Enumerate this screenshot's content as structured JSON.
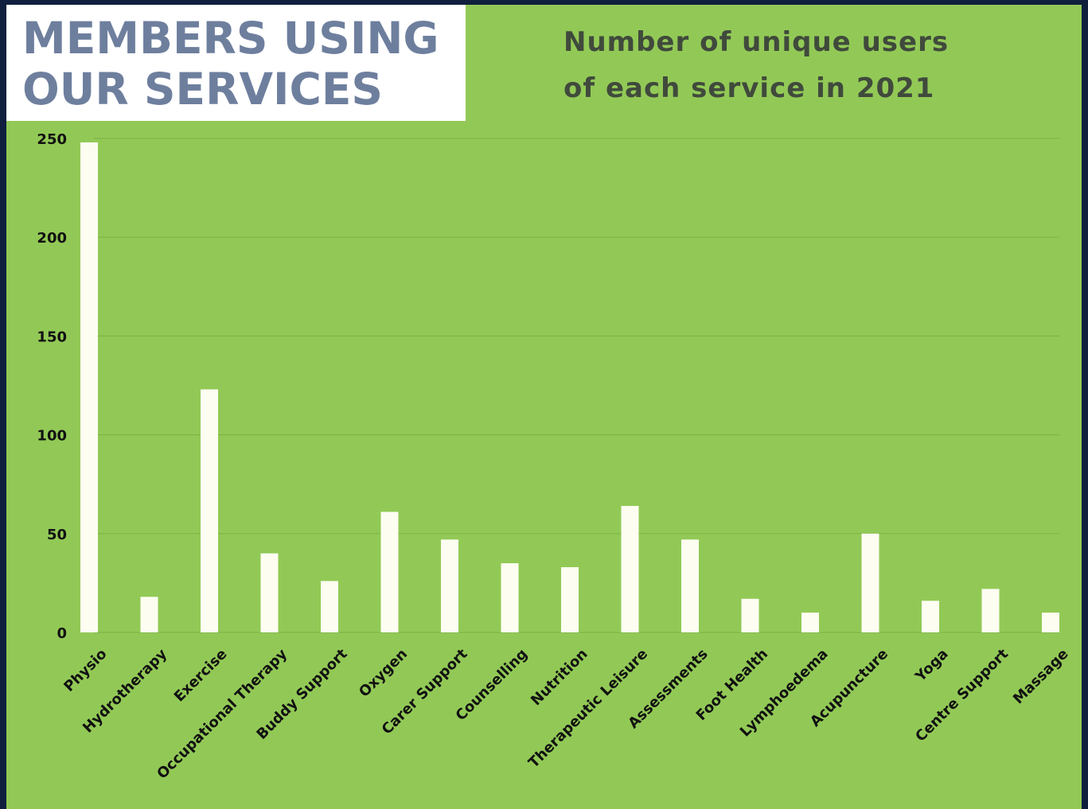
{
  "header": {
    "title": "MEMBERS USING\nOUR SERVICES",
    "subtitle": "Number of unique users\nof each service in 2021"
  },
  "colors": {
    "background": "#92c956",
    "frame": "#0f1f3d",
    "bar": "#fdfdf1",
    "title_text": "#6e7f9e",
    "subtitle_text": "#404a3c"
  },
  "chart_data": {
    "type": "bar",
    "title": "Number of unique users of each service in 2021",
    "categories": [
      "Physio",
      "Hydrotherapy",
      "Exercise",
      "Occupational Therapy",
      "Buddy Support",
      "Oxygen",
      "Carer Support",
      "Counselling",
      "Nutrition",
      "Therapeutic Leisure",
      "Assessments",
      "Foot Health",
      "Lymphoedema",
      "Acupuncture",
      "Yoga",
      "Centre Support",
      "Massage"
    ],
    "values": [
      248,
      18,
      123,
      40,
      26,
      61,
      47,
      35,
      33,
      64,
      47,
      17,
      10,
      50,
      16,
      22,
      10
    ],
    "ylim": [
      0,
      250
    ],
    "yticks": [
      0,
      50,
      100,
      150,
      200,
      250
    ],
    "grid": true,
    "legend": "none"
  }
}
